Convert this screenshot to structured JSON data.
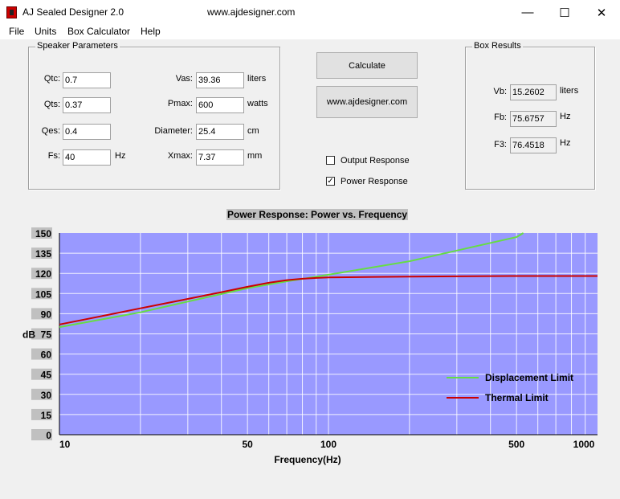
{
  "window": {
    "title": "AJ Sealed Designer 2.0",
    "url": "www.ajdesigner.com",
    "controls": {
      "minimize": "—",
      "maximize": "☐",
      "close": "✕"
    }
  },
  "menu": [
    "File",
    "Units",
    "Box Calculator",
    "Help"
  ],
  "speaker": {
    "title": "Speaker Parameters",
    "qtc_label": "Qtc:",
    "qtc_value": "0.7",
    "qts_label": "Qts:",
    "qts_value": "0.37",
    "qes_label": "Qes:",
    "qes_value": "0.4",
    "fs_label": "Fs:",
    "fs_value": "40",
    "fs_unit": "Hz",
    "vas_label": "Vas:",
    "vas_value": "39.36",
    "vas_unit": "liters",
    "pmax_label": "Pmax:",
    "pmax_value": "600",
    "pmax_unit": "watts",
    "diameter_label": "Diameter:",
    "diameter_value": "25.4",
    "diameter_unit": "cm",
    "xmax_label": "Xmax:",
    "xmax_value": "7.37",
    "xmax_unit": "mm"
  },
  "buttons": {
    "calculate": "Calculate",
    "website": "www.ajdesigner.com"
  },
  "options": {
    "output_response": {
      "label": "Output Response",
      "checked": false
    },
    "power_response": {
      "label": "Power Response",
      "checked": true
    }
  },
  "results": {
    "title": "Box Results",
    "vb_label": "Vb:",
    "vb_value": "15.2602",
    "vb_unit": "liters",
    "fb_label": "Fb:",
    "fb_value": "75.6757",
    "fb_unit": "Hz",
    "f3_label": "F3:",
    "f3_value": "76.4518",
    "f3_unit": "Hz"
  },
  "chart_data": {
    "type": "line",
    "title": "Power Response: Power vs. Frequency",
    "xlabel": "Frequency(Hz)",
    "ylabel": "dB",
    "x_scale": "log",
    "xlim": [
      10,
      1000
    ],
    "ylim": [
      0,
      150
    ],
    "x_ticks": [
      10,
      50,
      100,
      500,
      1000
    ],
    "y_ticks": [
      0,
      15,
      30,
      45,
      60,
      75,
      90,
      105,
      120,
      135,
      150
    ],
    "grid": true,
    "legend_position": "bottom-right",
    "plot_bg": "#9999ff",
    "series": [
      {
        "name": "Displacement Limit",
        "color": "#66dd44",
        "x": [
          10,
          20,
          30,
          50,
          70,
          100,
          200,
          300,
          500,
          530
        ],
        "y": [
          80,
          91,
          99,
          109,
          114,
          119,
          129,
          137,
          147,
          150
        ]
      },
      {
        "name": "Thermal Limit",
        "color": "#cc0000",
        "x": [
          10,
          15,
          20,
          30,
          40,
          50,
          60,
          70,
          80,
          90,
          100,
          150,
          200,
          300,
          500,
          1000
        ],
        "y": [
          82,
          89,
          94,
          101,
          106,
          110,
          113,
          115,
          116,
          116.6,
          117,
          117.4,
          117.6,
          117.8,
          118,
          118
        ]
      }
    ]
  }
}
